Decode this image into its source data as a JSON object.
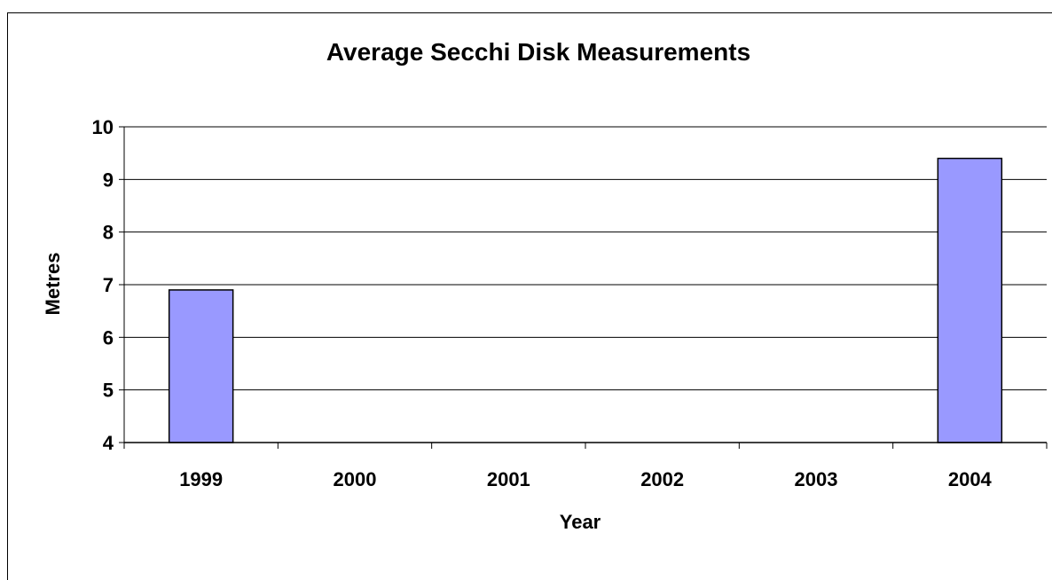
{
  "chart_data": {
    "type": "bar",
    "title": "Average Secchi Disk Measurements",
    "xlabel": "Year",
    "ylabel": "Metres",
    "categories": [
      "1999",
      "2000",
      "2001",
      "2002",
      "2003",
      "2004"
    ],
    "values": [
      6.9,
      null,
      null,
      null,
      null,
      9.4
    ],
    "ylim": [
      4,
      10
    ],
    "yticks": [
      4,
      5,
      6,
      7,
      8,
      9,
      10
    ],
    "grid": true,
    "legend": "none",
    "colors": {
      "bar_fill": "#9999ff",
      "bar_stroke": "#000000",
      "grid": "#000000",
      "background": "#ffffff"
    }
  }
}
